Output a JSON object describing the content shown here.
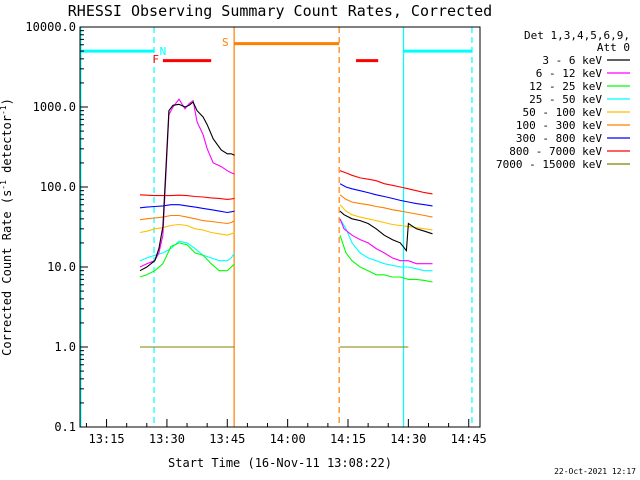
{
  "chart_data": {
    "type": "line",
    "title": "RHESSI Observing Summary Count Rates, Corrected",
    "xlabel": "Start Time (16-Nov-11 13:08:22)",
    "ylabel": "Corrected Count Rate (s",
    "ylabel_sup": "-1",
    "ylabel_tail": " detector",
    "ylabel_end": ")",
    "yscale": "log",
    "ylim": [
      0.1,
      10000
    ],
    "yticks": [
      {
        "v": 0.1,
        "label": "0.1"
      },
      {
        "v": 1,
        "label": "1.0"
      },
      {
        "v": 10,
        "label": "10.0"
      },
      {
        "v": 100,
        "label": "100.0"
      },
      {
        "v": 1000,
        "label": "1000.0"
      },
      {
        "v": 10000,
        "label": "10000.0"
      }
    ],
    "xlim_min": [
      788.4,
      887.8
    ],
    "xticks": [
      {
        "m": 795,
        "label": "13:15"
      },
      {
        "m": 810,
        "label": "13:30"
      },
      {
        "m": 825,
        "label": "13:45"
      },
      {
        "m": 840,
        "label": "14:00"
      },
      {
        "m": 855,
        "label": "14:15"
      },
      {
        "m": 870,
        "label": "14:30"
      },
      {
        "m": 885,
        "label": "14:45"
      }
    ],
    "legend_header": [
      "Det 1,3,4,5,6,9,",
      "Att 0"
    ],
    "series": [
      {
        "name": "3 - 6 keV",
        "color": "#000000",
        "x": [
          803.3,
          805.0,
          807.0,
          808.0,
          809.0,
          810.5,
          811.5,
          813.0,
          814.5,
          815.5,
          816.5,
          817.5,
          819.0,
          820.0,
          821.5,
          823.5,
          825.0,
          826.0,
          826.8,
          853.0,
          854.0,
          856.0,
          858.0,
          860.0,
          862.0,
          864.0,
          866.0,
          868.0,
          869.5,
          870.0,
          872.0,
          874.0,
          876.0
        ],
        "y": [
          9,
          10,
          12,
          17,
          32,
          900,
          1050,
          1080,
          1000,
          1050,
          1150,
          900,
          750,
          600,
          400,
          290,
          260,
          260,
          250,
          50,
          45,
          40,
          38,
          35,
          30,
          25,
          22,
          20,
          16,
          35,
          30,
          28,
          26
        ]
      },
      {
        "name": "6 - 12 keV",
        "color": "#ff00ff",
        "x": [
          803.3,
          805.0,
          807.0,
          808.0,
          809.0,
          810.5,
          811.5,
          813.0,
          814.5,
          815.5,
          816.5,
          817.5,
          819.0,
          820.0,
          821.5,
          823.5,
          825.0,
          826.0,
          826.8,
          853.0,
          854.0,
          856.0,
          858.0,
          860.0,
          862.0,
          864.0,
          866.0,
          868.0,
          870.0,
          872.0,
          874.0,
          876.0
        ],
        "y": [
          10,
          11,
          12,
          15,
          25,
          800,
          1000,
          1250,
          950,
          1100,
          1200,
          650,
          450,
          300,
          200,
          180,
          160,
          150,
          145,
          40,
          30,
          25,
          22,
          20,
          17,
          15,
          13,
          12,
          12,
          11,
          11,
          11
        ]
      },
      {
        "name": "12 - 25 keV",
        "color": "#00ff00",
        "x": [
          803.3,
          805.0,
          807.0,
          809.0,
          811.0,
          813.0,
          815.0,
          817.0,
          819.0,
          821.0,
          823.0,
          825.0,
          826.0,
          826.8,
          853.0,
          854.5,
          856.0,
          858.0,
          860.0,
          862.0,
          864.0,
          866.0,
          868.0,
          870.0,
          872.0,
          874.0,
          876.0
        ],
        "y": [
          7.5,
          8,
          9,
          11,
          18,
          20,
          19,
          15,
          14,
          11,
          9,
          9,
          10,
          11,
          25,
          15,
          12,
          10,
          9,
          8,
          8,
          7.5,
          7.5,
          7,
          7,
          6.8,
          6.5
        ]
      },
      {
        "name": "25 - 50 keV",
        "color": "#00ffff",
        "x": [
          803.3,
          805.0,
          807.0,
          809.0,
          811.0,
          813.0,
          815.0,
          817.0,
          819.0,
          821.0,
          823.0,
          825.0,
          826.0,
          826.8,
          853.0,
          854.5,
          856.0,
          858.0,
          860.0,
          862.0,
          864.0,
          866.0,
          868.0,
          870.0,
          872.0,
          874.0,
          876.0
        ],
        "y": [
          12,
          13,
          14,
          15,
          17,
          21,
          20,
          17,
          14,
          13,
          12,
          12,
          13,
          15,
          40,
          30,
          20,
          15,
          13,
          12,
          11,
          10.5,
          10,
          10,
          9.5,
          9,
          9
        ]
      },
      {
        "name": "50 - 100 keV",
        "color": "#ffbf00",
        "x": [
          803.3,
          805.0,
          807.0,
          809.0,
          811.0,
          813.0,
          815.0,
          817.0,
          819.0,
          821.0,
          823.0,
          825.0,
          826.0,
          826.8,
          853.0,
          854.5,
          856.0,
          858.0,
          860.0,
          862.0,
          864.0,
          866.0,
          868.0,
          870.0,
          872.0,
          874.0,
          876.0
        ],
        "y": [
          27,
          28,
          30,
          31,
          33,
          34,
          33,
          30,
          29,
          27,
          26,
          25,
          26,
          27,
          60,
          50,
          45,
          42,
          40,
          38,
          36,
          34,
          33,
          32,
          31,
          30,
          29
        ]
      },
      {
        "name": "100 - 300 keV",
        "color": "#ff7f00",
        "x": [
          803.3,
          805.0,
          807.0,
          809.0,
          811.0,
          813.0,
          815.0,
          817.0,
          819.0,
          821.0,
          823.0,
          825.0,
          826.0,
          826.8,
          853.0,
          854.5,
          856.0,
          858.0,
          860.0,
          862.0,
          864.0,
          866.0,
          868.0,
          870.0,
          872.0,
          874.0,
          876.0
        ],
        "y": [
          39,
          40,
          41,
          42,
          44,
          44,
          42,
          40,
          38,
          37,
          36,
          35,
          36,
          38,
          80,
          70,
          65,
          62,
          60,
          57,
          55,
          52,
          50,
          48,
          46,
          44,
          42
        ]
      },
      {
        "name": "300 - 800 keV",
        "color": "#0000ff",
        "x": [
          803.3,
          805.0,
          807.0,
          809.0,
          811.0,
          813.0,
          815.0,
          817.0,
          819.0,
          821.0,
          823.0,
          825.0,
          826.0,
          826.8,
          853.0,
          854.5,
          856.0,
          858.0,
          860.0,
          862.0,
          864.0,
          866.0,
          868.0,
          870.0,
          872.0,
          874.0,
          876.0
        ],
        "y": [
          55,
          56,
          57,
          58,
          60,
          60,
          58,
          56,
          54,
          52,
          50,
          48,
          49,
          50,
          110,
          100,
          95,
          90,
          85,
          80,
          76,
          72,
          68,
          65,
          62,
          60,
          58
        ]
      },
      {
        "name": "800 - 7000 keV",
        "color": "#ff0000",
        "x": [
          803.3,
          805.0,
          807.0,
          809.0,
          811.0,
          813.0,
          815.0,
          817.0,
          819.0,
          821.0,
          823.0,
          825.0,
          826.0,
          826.8,
          853.0,
          854.5,
          856.0,
          858.0,
          860.0,
          862.0,
          864.0,
          866.0,
          868.0,
          870.0,
          872.0,
          874.0,
          876.0
        ],
        "y": [
          80,
          79,
          78,
          78,
          78,
          79,
          78,
          76,
          75,
          73,
          72,
          70,
          71,
          72,
          160,
          150,
          140,
          130,
          125,
          120,
          110,
          105,
          100,
          95,
          90,
          85,
          82
        ]
      },
      {
        "name": "7000 - 15000 keV",
        "color": "#808000",
        "x": [
          803.3,
          805.0,
          807.0,
          809.0,
          811.0,
          813.0,
          815.0,
          817.0,
          819.0,
          821.0,
          823.0,
          825.0,
          826.0,
          826.8,
          853.0,
          854.5,
          856.0,
          858.0,
          860.0,
          862.0,
          864.0,
          866.0,
          868.0,
          870.0
        ],
        "y": [
          1,
          1,
          1,
          1,
          1,
          1,
          1,
          1,
          1,
          1,
          1,
          1,
          1,
          1,
          1,
          1,
          1,
          1,
          1,
          1,
          1,
          1,
          1,
          1
        ]
      }
    ],
    "vlines": [
      {
        "m": 788.6,
        "color": "#00ffff",
        "style": "solid"
      },
      {
        "m": 806.8,
        "color": "#00ffff",
        "style": "dashed"
      },
      {
        "m": 826.7,
        "color": "#ff7f00",
        "style": "solid"
      },
      {
        "m": 852.8,
        "color": "#ff7f00",
        "style": "dashed"
      },
      {
        "m": 868.8,
        "color": "#00ffff",
        "style": "solid"
      },
      {
        "m": 885.8,
        "color": "#00ffff",
        "style": "dashed"
      }
    ],
    "bars": [
      {
        "from": 788.6,
        "to": 806.8,
        "y": 5000,
        "color": "#00ffff",
        "label": "N",
        "label_m": 809.0,
        "label_y": 5000
      },
      {
        "from": 868.8,
        "to": 885.8,
        "y": 5000,
        "color": "#00ffff"
      },
      {
        "from": 826.7,
        "to": 852.8,
        "y": 6200,
        "color": "#ff7f00",
        "label": "S",
        "label_m": 824.5,
        "label_y": 6500
      },
      {
        "from": 809.0,
        "to": 821.0,
        "y": 3800,
        "color": "#ff0000",
        "label": "F",
        "label_m": 807.2,
        "label_y": 4000
      },
      {
        "from": 857.0,
        "to": 862.5,
        "y": 3800,
        "color": "#ff0000"
      }
    ],
    "stamp": "22-Oct-2021 12:17"
  }
}
